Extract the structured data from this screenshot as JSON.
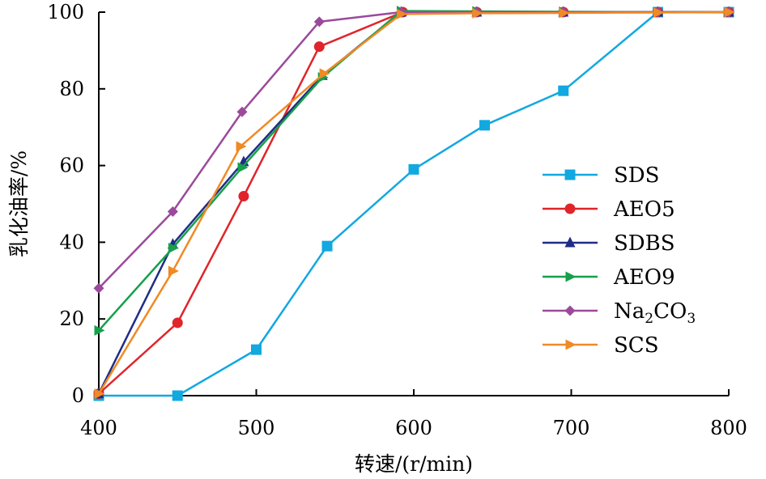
{
  "chart_data": {
    "type": "line",
    "xlabel": "转速/(r/min)",
    "ylabel": "乳化油率/%",
    "xlim": [
      400,
      800
    ],
    "ylim": [
      0,
      100
    ],
    "x_ticks": [
      400,
      500,
      600,
      700,
      800
    ],
    "y_ticks": [
      0,
      20,
      40,
      60,
      80,
      100
    ],
    "grid": false,
    "legend_position": "right",
    "series": [
      {
        "name": "SDS",
        "color": "#12a8e0",
        "marker": "square",
        "points": [
          [
            400,
            0
          ],
          [
            450,
            0
          ],
          [
            500,
            12
          ],
          [
            545,
            39
          ],
          [
            600,
            59
          ],
          [
            645,
            70.5
          ],
          [
            695,
            79.5
          ],
          [
            755,
            100
          ],
          [
            800,
            100
          ]
        ]
      },
      {
        "name": "AEO5",
        "color": "#e0242b",
        "marker": "circle",
        "points": [
          [
            400,
            0.5
          ],
          [
            450,
            19
          ],
          [
            492,
            52
          ],
          [
            540,
            91
          ],
          [
            593,
            100
          ],
          [
            640,
            100
          ],
          [
            695,
            100
          ],
          [
            755,
            100
          ],
          [
            800,
            100
          ]
        ]
      },
      {
        "name": "SDBS",
        "color": "#1f2d86",
        "marker": "triangle-up",
        "points": [
          [
            400,
            0.5
          ],
          [
            447,
            39.5
          ],
          [
            492,
            61
          ],
          [
            542,
            83.5
          ],
          [
            592,
            100
          ],
          [
            640,
            100
          ],
          [
            695,
            100
          ],
          [
            755,
            100
          ],
          [
            800,
            100
          ]
        ]
      },
      {
        "name": "AEO9",
        "color": "#16a04a",
        "marker": "triangle-right",
        "points": [
          [
            400,
            17
          ],
          [
            447,
            38.5
          ],
          [
            491,
            59.5
          ],
          [
            542,
            83
          ],
          [
            592,
            100.3
          ],
          [
            640,
            100.2
          ],
          [
            695,
            100.1
          ],
          [
            755,
            100
          ],
          [
            800,
            100
          ]
        ]
      },
      {
        "name": "Na2CO3",
        "name_base": "Na",
        "name_sub1": "2",
        "name_mid": "CO",
        "name_sub2": "3",
        "color": "#9b4a9b",
        "marker": "diamond",
        "points": [
          [
            400,
            28
          ],
          [
            447,
            48
          ],
          [
            491,
            74
          ],
          [
            540,
            97.5
          ],
          [
            592,
            100
          ],
          [
            640,
            100
          ],
          [
            695,
            100
          ],
          [
            755,
            100
          ],
          [
            800,
            100
          ]
        ]
      },
      {
        "name": "SCS",
        "color": "#f08a24",
        "marker": "triangle-right",
        "points": [
          [
            400,
            0.5
          ],
          [
            447,
            32.5
          ],
          [
            490,
            65
          ],
          [
            543,
            84
          ],
          [
            592,
            99.5
          ],
          [
            640,
            99.7
          ],
          [
            695,
            99.8
          ],
          [
            755,
            99.9
          ],
          [
            800,
            100
          ]
        ]
      }
    ]
  }
}
